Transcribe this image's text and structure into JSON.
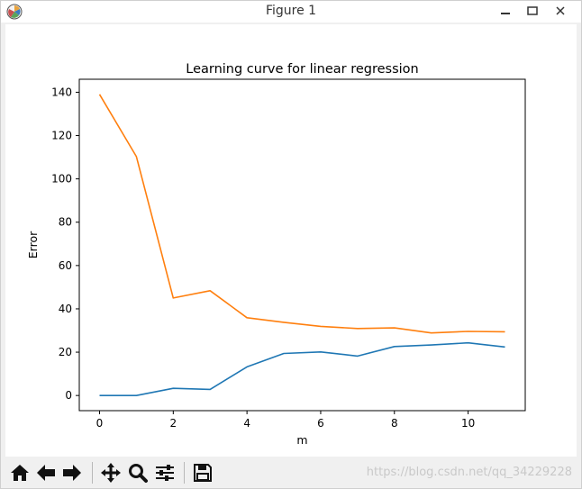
{
  "window": {
    "title": "Figure 1",
    "icons": {
      "app": "matplotlib-icon",
      "minimize": "minimize-icon",
      "maximize": "maximize-icon",
      "close": "close-icon"
    }
  },
  "toolbar": {
    "buttons": [
      {
        "name": "home-button",
        "icon": "home-icon"
      },
      {
        "name": "back-button",
        "icon": "arrow-left-icon"
      },
      {
        "name": "forward-button",
        "icon": "arrow-right-icon"
      },
      {
        "name": "pan-button",
        "icon": "move-icon"
      },
      {
        "name": "zoom-button",
        "icon": "magnifier-icon"
      },
      {
        "name": "subplots-button",
        "icon": "sliders-icon"
      },
      {
        "name": "save-button",
        "icon": "floppy-disk-icon"
      }
    ]
  },
  "watermark": "https://blog.csdn.net/qq_34229228",
  "chart_data": {
    "type": "line",
    "title": "Learning curve for linear regression",
    "xlabel": "m",
    "ylabel": "Error",
    "xlim": [
      -0.55,
      11.55
    ],
    "ylim": [
      -7,
      146
    ],
    "xticks": [
      0,
      2,
      4,
      6,
      8,
      10
    ],
    "yticks": [
      0,
      20,
      40,
      60,
      80,
      100,
      120,
      140
    ],
    "grid": false,
    "x": [
      0,
      1,
      2,
      3,
      4,
      5,
      6,
      7,
      8,
      9,
      10,
      11
    ],
    "series": [
      {
        "color": "#1f77b4",
        "values": [
          0,
          0,
          3.3,
          2.8,
          13.2,
          19.4,
          20.1,
          18.2,
          22.6,
          23.3,
          24.3,
          22.4
        ]
      },
      {
        "color": "#ff7f0e",
        "values": [
          139,
          110.3,
          45,
          48.4,
          35.9,
          33.8,
          31.9,
          30.9,
          31.2,
          28.9,
          29.6,
          29.4
        ]
      }
    ]
  }
}
